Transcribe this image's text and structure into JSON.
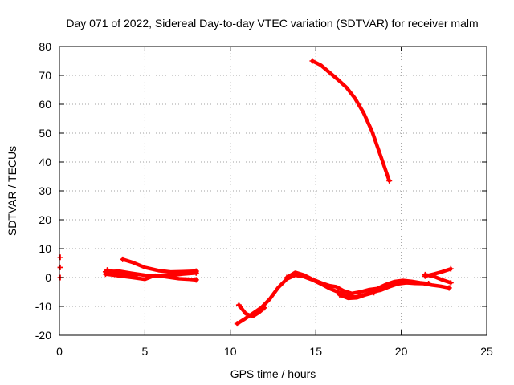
{
  "chart_data": {
    "type": "scatter",
    "title": "Day 071 of 2022, Sidereal Day-to-day VTEC variation (SDTVAR) for receiver malm",
    "xlabel": "GPS time / hours",
    "ylabel": "SDTVAR / TECUs",
    "xlim": [
      0,
      25
    ],
    "ylim": [
      -20,
      80
    ],
    "xticks": [
      0,
      5,
      10,
      15,
      20,
      25
    ],
    "yticks": [
      -20,
      -10,
      0,
      10,
      20,
      30,
      40,
      50,
      60,
      70,
      80
    ],
    "grid": true,
    "marker": "+",
    "color": "#ff0000",
    "series": [
      {
        "name": "isolated-points",
        "style": "points",
        "points": [
          [
            0.05,
            7
          ],
          [
            0.05,
            3.5
          ],
          [
            0.05,
            0
          ]
        ]
      },
      {
        "name": "track-a-upper",
        "style": "line",
        "points": [
          [
            3.7,
            6.3
          ],
          [
            4.3,
            5.2
          ],
          [
            5.0,
            3.5
          ],
          [
            5.8,
            2.4
          ],
          [
            6.5,
            1.9
          ],
          [
            7.2,
            2.0
          ],
          [
            8.0,
            2.2
          ]
        ]
      },
      {
        "name": "track-b",
        "style": "line",
        "points": [
          [
            2.7,
            2.0
          ],
          [
            3.5,
            2.2
          ],
          [
            4.2,
            1.5
          ],
          [
            5.0,
            0.8
          ],
          [
            5.8,
            0.5
          ],
          [
            6.5,
            0.7
          ],
          [
            7.2,
            1.2
          ],
          [
            8.0,
            1.6
          ]
        ]
      },
      {
        "name": "track-c",
        "style": "line",
        "points": [
          [
            2.7,
            1.2
          ],
          [
            3.5,
            0.6
          ],
          [
            4.3,
            0.0
          ],
          [
            5.0,
            -0.6
          ],
          [
            5.6,
            0.8
          ],
          [
            6.3,
            0.2
          ],
          [
            7.0,
            -0.4
          ],
          [
            7.6,
            -0.6
          ],
          [
            8.0,
            -0.8
          ]
        ]
      },
      {
        "name": "track-d-short",
        "style": "line",
        "points": [
          [
            2.8,
            2.6
          ],
          [
            3.3,
            1.8
          ],
          [
            3.9,
            1.2
          ],
          [
            4.5,
            0.8
          ]
        ]
      },
      {
        "name": "track-e-main",
        "style": "line",
        "points": [
          [
            10.4,
            -16
          ],
          [
            10.8,
            -14.5
          ],
          [
            11.3,
            -12.5
          ],
          [
            11.8,
            -10.5
          ],
          [
            12.3,
            -7.5
          ],
          [
            12.8,
            -3.5
          ],
          [
            13.3,
            -0.5
          ],
          [
            13.8,
            0.8
          ],
          [
            14.3,
            0.3
          ],
          [
            14.8,
            -0.8
          ],
          [
            15.3,
            -2.2
          ],
          [
            15.8,
            -3.8
          ],
          [
            16.3,
            -5.0
          ],
          [
            16.8,
            -6.2
          ],
          [
            17.3,
            -6.8
          ],
          [
            17.8,
            -6.0
          ],
          [
            18.3,
            -5.0
          ],
          [
            18.8,
            -4.4
          ],
          [
            19.3,
            -3.2
          ],
          [
            19.8,
            -2.2
          ],
          [
            20.3,
            -1.8
          ],
          [
            20.8,
            -2.0
          ],
          [
            21.3,
            -2.1
          ],
          [
            21.8,
            -2.6
          ],
          [
            22.3,
            -3.0
          ],
          [
            22.8,
            -3.6
          ]
        ]
      },
      {
        "name": "track-f-upper",
        "style": "line",
        "points": [
          [
            13.3,
            0.0
          ],
          [
            13.8,
            1.8
          ],
          [
            14.3,
            0.9
          ],
          [
            14.8,
            -0.6
          ],
          [
            15.3,
            -1.8
          ],
          [
            15.8,
            -2.8
          ],
          [
            16.2,
            -3.2
          ],
          [
            16.6,
            -4.5
          ],
          [
            17.1,
            -5.5
          ],
          [
            17.6,
            -5.0
          ],
          [
            18.1,
            -4.2
          ],
          [
            18.6,
            -3.8
          ],
          [
            19.1,
            -2.4
          ],
          [
            19.6,
            -1.4
          ],
          [
            20.1,
            -1.0
          ],
          [
            20.6,
            -1.3
          ],
          [
            21.1,
            -1.8
          ],
          [
            21.6,
            -2.1
          ]
        ]
      },
      {
        "name": "track-g-lower",
        "style": "line",
        "points": [
          [
            16.4,
            -6.0
          ],
          [
            16.9,
            -7.2
          ],
          [
            17.4,
            -7.0
          ],
          [
            17.9,
            -6.0
          ],
          [
            18.4,
            -5.2
          ]
        ]
      },
      {
        "name": "track-h-early",
        "style": "line",
        "points": [
          [
            10.5,
            -9.5
          ],
          [
            10.9,
            -12.5
          ],
          [
            11.3,
            -13.5
          ],
          [
            11.7,
            -12.0
          ],
          [
            12.0,
            -10.5
          ]
        ]
      },
      {
        "name": "track-i-tail",
        "style": "line",
        "points": [
          [
            21.4,
            1.0
          ],
          [
            21.9,
            0.4
          ],
          [
            22.4,
            -0.8
          ],
          [
            22.9,
            -1.8
          ]
        ]
      },
      {
        "name": "track-j-tail",
        "style": "line",
        "points": [
          [
            21.4,
            0.5
          ],
          [
            21.9,
            1.2
          ],
          [
            22.4,
            2.0
          ],
          [
            22.9,
            3.0
          ]
        ]
      },
      {
        "name": "track-k-steep",
        "style": "line",
        "points": [
          [
            14.8,
            75.0
          ],
          [
            15.3,
            73.5
          ],
          [
            15.8,
            71.0
          ],
          [
            16.3,
            68.5
          ],
          [
            16.8,
            65.8
          ],
          [
            17.3,
            62.0
          ],
          [
            17.8,
            57.0
          ],
          [
            18.3,
            50.5
          ],
          [
            18.8,
            42.0
          ],
          [
            19.3,
            33.5
          ]
        ]
      }
    ]
  }
}
